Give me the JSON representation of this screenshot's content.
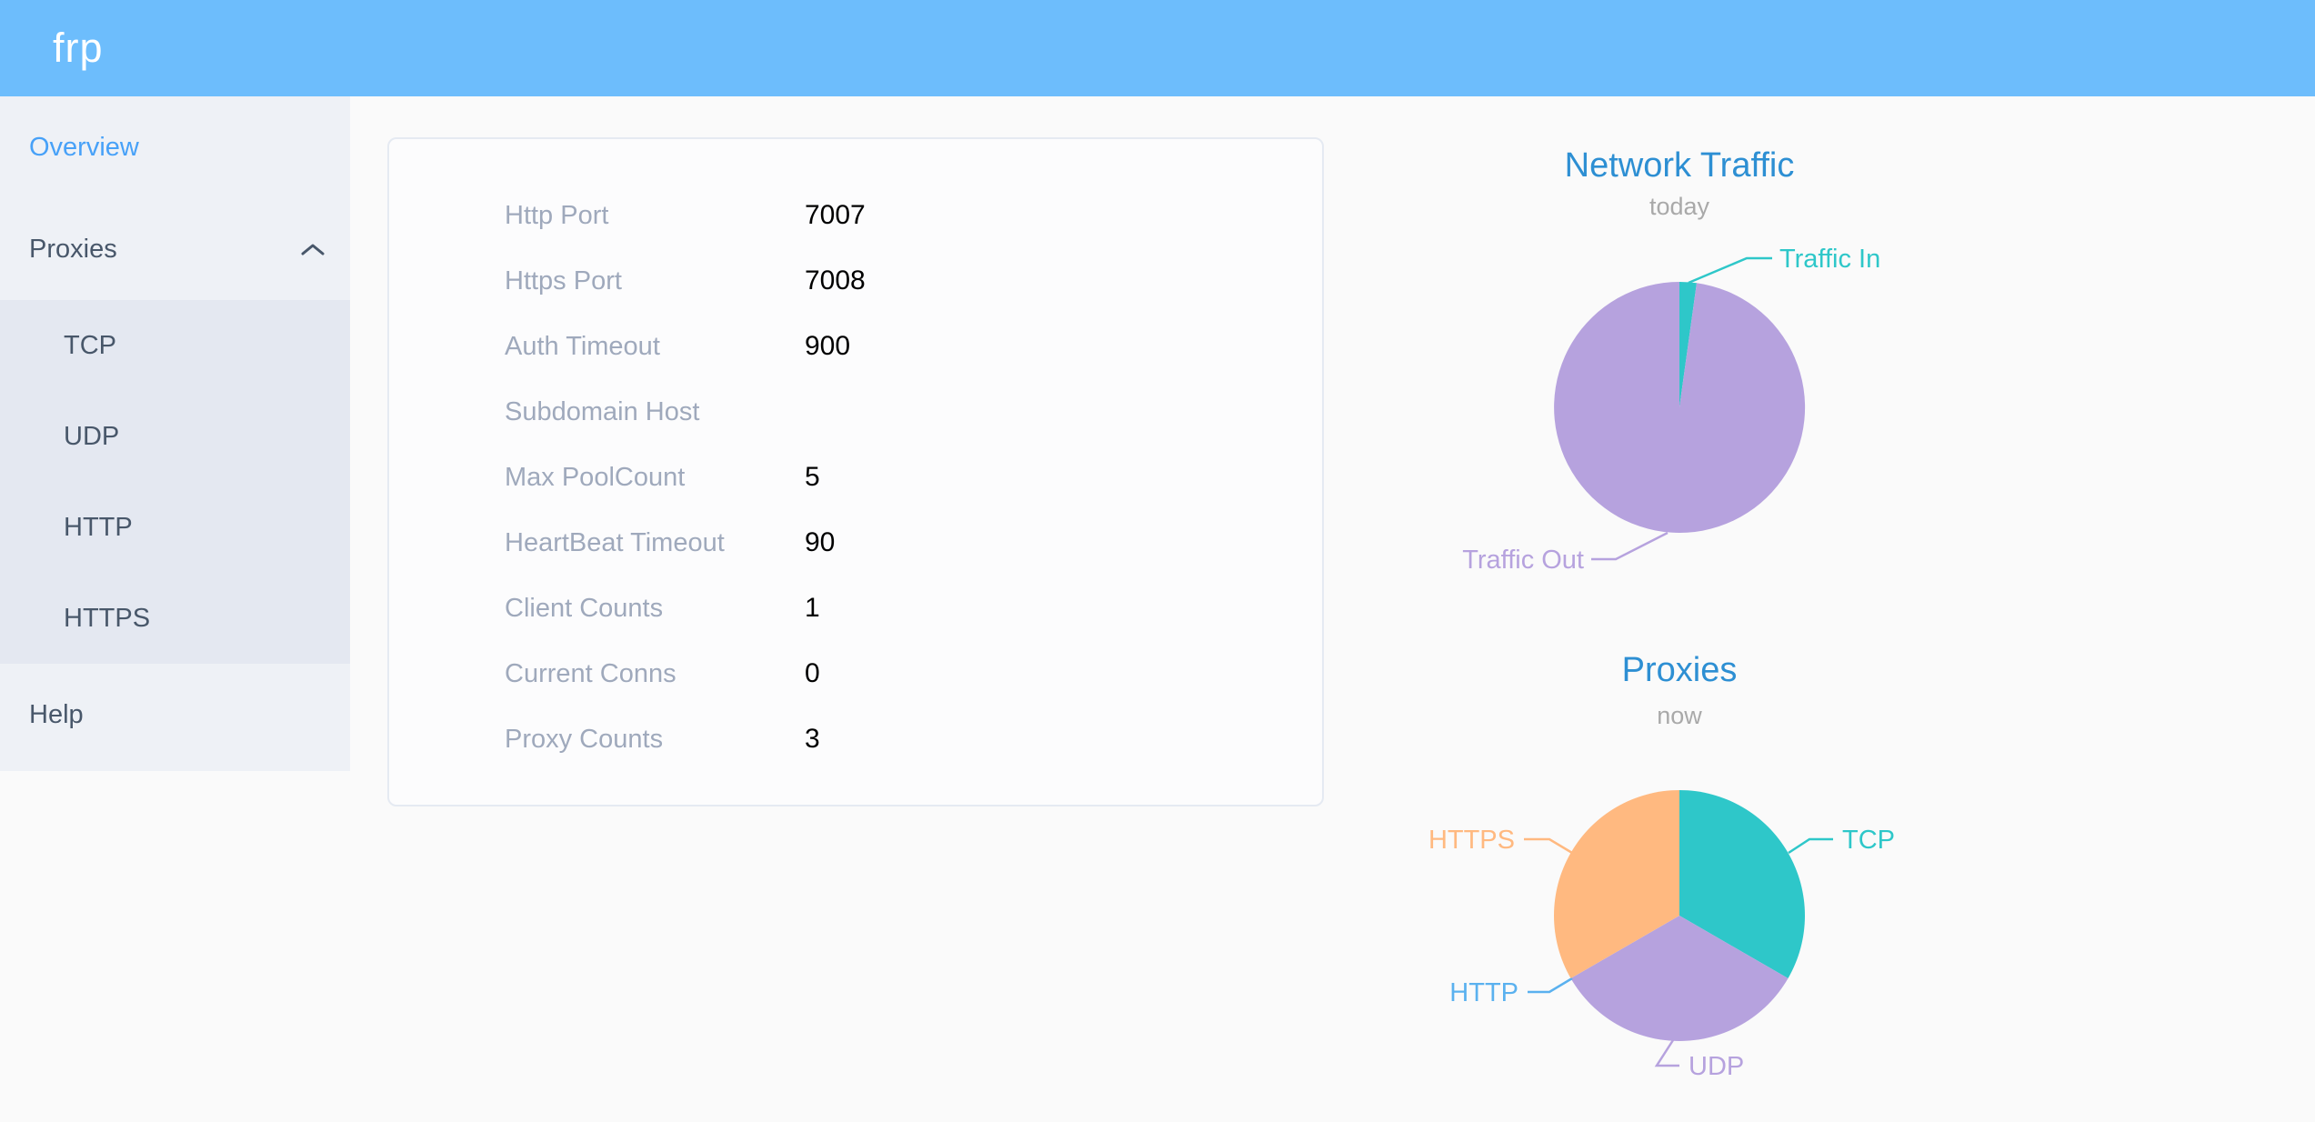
{
  "header": {
    "logo": "frp"
  },
  "sidebar": {
    "items": [
      {
        "label": "Overview",
        "active": true
      },
      {
        "label": "Proxies",
        "expanded": true,
        "children": [
          "TCP",
          "UDP",
          "HTTP",
          "HTTPS"
        ]
      },
      {
        "label": "Help"
      }
    ]
  },
  "server_info": {
    "rows": [
      {
        "label": "Http Port",
        "value": "7007"
      },
      {
        "label": "Https Port",
        "value": "7008"
      },
      {
        "label": "Auth Timeout",
        "value": "900"
      },
      {
        "label": "Subdomain Host",
        "value": ""
      },
      {
        "label": "Max PoolCount",
        "value": "5"
      },
      {
        "label": "HeartBeat Timeout",
        "value": "90"
      },
      {
        "label": "Client Counts",
        "value": "1"
      },
      {
        "label": "Current Conns",
        "value": "0"
      },
      {
        "label": "Proxy Counts",
        "value": "3"
      }
    ]
  },
  "chart_data": [
    {
      "type": "pie",
      "title": "Network Traffic",
      "subtitle": "today",
      "labels": [
        "Traffic In",
        "Traffic Out"
      ],
      "values_percent": [
        2.2,
        97.8
      ],
      "colors": [
        "#2ec7c9",
        "#b6a2de"
      ],
      "label_position": "outside",
      "legend": "none"
    },
    {
      "type": "pie",
      "title": "Proxies",
      "subtitle": "now",
      "labels": [
        "TCP",
        "UDP",
        "HTTP",
        "HTTPS"
      ],
      "values": [
        1,
        1,
        0,
        1
      ],
      "colors": [
        "#2ec7c9",
        "#b6a2de",
        "#5ab1ef",
        "#ffb980"
      ],
      "label_position": "outside",
      "legend": "none"
    }
  ],
  "colors": {
    "header_bg": "#6dbdfc",
    "sidebar_bg": "#eef1f6",
    "submenu_bg": "#e4e8f1",
    "menu_text": "#48576a",
    "menu_active": "#47a1f8",
    "chart_title": "#2d8fd3",
    "chart_subtitle": "#a9a9a9"
  }
}
